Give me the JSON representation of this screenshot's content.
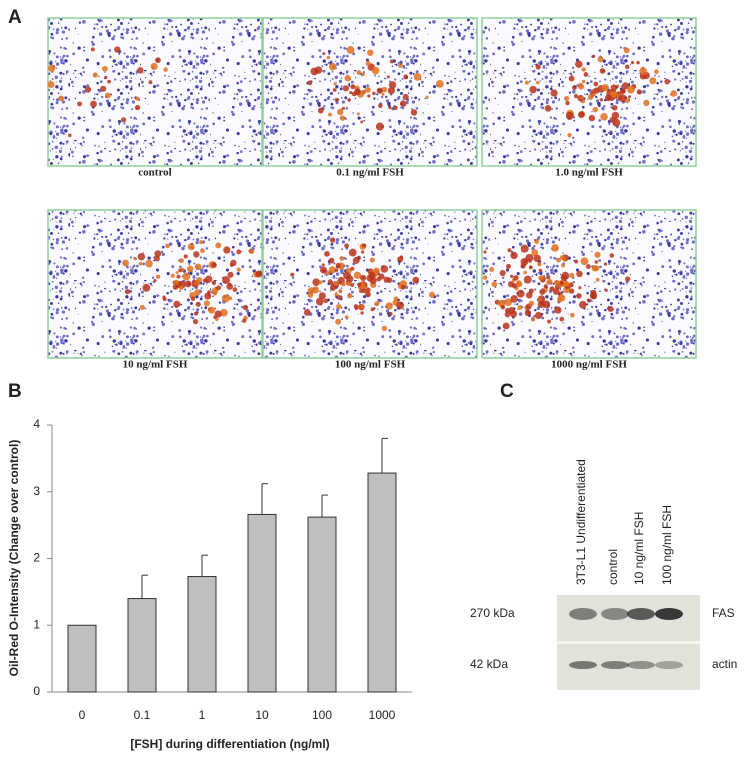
{
  "panel_labels": [
    "A",
    "B",
    "C"
  ],
  "panel_a": {
    "captions": [
      "control",
      "0.1 ng/ml FSH",
      "1.0 ng/ml FSH",
      "10 ng/ml FSH",
      "100 ng/ml FSH",
      "1000 ng/ml FSH"
    ]
  },
  "chart_data": {
    "type": "bar",
    "x_label": "[FSH] during differentiation (ng/ml)",
    "y_label": "Oil-Red O-Intensity (Change over control)",
    "categories": [
      "0",
      "0.1",
      "1",
      "10",
      "100",
      "1000"
    ],
    "values": [
      1.0,
      1.4,
      1.73,
      2.66,
      2.62,
      3.28
    ],
    "errors": [
      null,
      0.35,
      0.32,
      0.46,
      0.33,
      0.52
    ],
    "color": "#bfbfbf",
    "ylim": [
      0,
      4
    ],
    "yticks": [
      0,
      1,
      2,
      3,
      4
    ],
    "grid": false
  },
  "panel_c": {
    "lanes": [
      "3T3-L1 Undifferentiated",
      "control",
      "10 ng/ml  FSH",
      "100 ng/ml  FSH"
    ],
    "rows": [
      {
        "size": "270 kDa",
        "protein": "FAS"
      },
      {
        "size": "42 kDa",
        "protein": "actin"
      }
    ]
  }
}
